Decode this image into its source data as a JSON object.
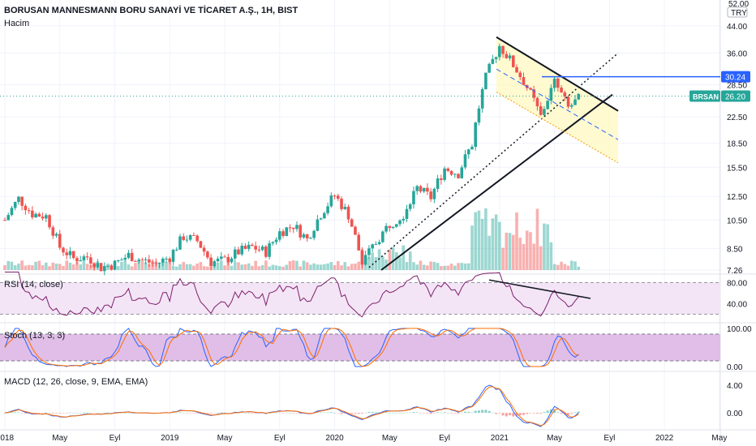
{
  "header": {
    "title": "BORUSAN MANNESMANN BORU SANAYİ VE TİCARET A.Ş., 1H, BIST",
    "volume_label": "Hacim"
  },
  "price_axis": {
    "currency_label": "TRY",
    "top_label": "52.00",
    "ticks": [
      "44.00",
      "36.00",
      "28.50",
      "22.50",
      "18.50",
      "15.50",
      "12.50",
      "10.50",
      "8.50",
      "7.26"
    ]
  },
  "price_tags": {
    "resistance": {
      "value": "30.24",
      "color": "#2962ff"
    },
    "last": {
      "symbol": "BRSAN",
      "value": "26.20",
      "color": "#26a69a"
    }
  },
  "time_axis": {
    "labels": [
      "2018",
      "May",
      "Eyl",
      "2019",
      "May",
      "Eyl",
      "2020",
      "May",
      "Eyl",
      "2021",
      "May",
      "Eyl",
      "2022",
      "May"
    ]
  },
  "rsi": {
    "label": "RSI (14, close)",
    "ticks": [
      "80.00",
      "40.00"
    ]
  },
  "stoch": {
    "label": "Stoch (13, 3, 3)",
    "ticks": [
      "100.00",
      "0.00"
    ]
  },
  "macd": {
    "label": "MACD (12, 26, close, 9, EMA, EMA)",
    "ticks": [
      "4.00",
      "0.00"
    ]
  },
  "colors": {
    "up": "#26a69a",
    "down": "#ef5350",
    "rsi_line": "#7e1e6e",
    "rsi_band": "#f3e5f5",
    "stoch_band": "#e1bee7",
    "stoch_k": "#2962ff",
    "stoch_d": "#ff6d00",
    "macd_line": "#2962ff",
    "signal_line": "#ff6d00",
    "channel_fill": "#fff9c4"
  },
  "chart_data": {
    "type": "candlestick",
    "interval": "1H",
    "currency": "TRY",
    "x_range": [
      "2018",
      "2022 May"
    ],
    "price_range": [
      7.26,
      52.0
    ],
    "price_scale": "log",
    "approx_closes": [
      {
        "date": "2018-01",
        "price": 10.5
      },
      {
        "date": "2018-02",
        "price": 12.3
      },
      {
        "date": "2018-03",
        "price": 11.0
      },
      {
        "date": "2018-04",
        "price": 10.8
      },
      {
        "date": "2018-05",
        "price": 8.6
      },
      {
        "date": "2018-06",
        "price": 7.9
      },
      {
        "date": "2018-07",
        "price": 8.0
      },
      {
        "date": "2018-08",
        "price": 7.4
      },
      {
        "date": "2018-09",
        "price": 7.6
      },
      {
        "date": "2018-10",
        "price": 8.1
      },
      {
        "date": "2018-11",
        "price": 7.8
      },
      {
        "date": "2018-12",
        "price": 7.6
      },
      {
        "date": "2019-01",
        "price": 8.0
      },
      {
        "date": "2019-02",
        "price": 9.3
      },
      {
        "date": "2019-03",
        "price": 9.0
      },
      {
        "date": "2019-04",
        "price": 7.7
      },
      {
        "date": "2019-05",
        "price": 7.8
      },
      {
        "date": "2019-06",
        "price": 8.3
      },
      {
        "date": "2019-07",
        "price": 8.6
      },
      {
        "date": "2019-08",
        "price": 8.3
      },
      {
        "date": "2019-09",
        "price": 9.6
      },
      {
        "date": "2019-10",
        "price": 10.1
      },
      {
        "date": "2019-11",
        "price": 9.1
      },
      {
        "date": "2019-12",
        "price": 11.0
      },
      {
        "date": "2020-01",
        "price": 12.6
      },
      {
        "date": "2020-02",
        "price": 10.9
      },
      {
        "date": "2020-03",
        "price": 7.6
      },
      {
        "date": "2020-04",
        "price": 8.9
      },
      {
        "date": "2020-05",
        "price": 10.2
      },
      {
        "date": "2020-06",
        "price": 11.0
      },
      {
        "date": "2020-07",
        "price": 13.3
      },
      {
        "date": "2020-08",
        "price": 12.4
      },
      {
        "date": "2020-09",
        "price": 15.4
      },
      {
        "date": "2020-10",
        "price": 14.8
      },
      {
        "date": "2020-11",
        "price": 18.4
      },
      {
        "date": "2020-12",
        "price": 30.0
      },
      {
        "date": "2021-01",
        "price": 38.0
      },
      {
        "date": "2021-02",
        "price": 33.0
      },
      {
        "date": "2021-03",
        "price": 28.0
      },
      {
        "date": "2021-04",
        "price": 22.5
      },
      {
        "date": "2021-05",
        "price": 29.0
      },
      {
        "date": "2021-06",
        "price": 24.0
      },
      {
        "date": "2021-07",
        "price": 26.2
      }
    ],
    "horizontal_levels": [
      30.24
    ],
    "last_price": 26.2
  }
}
